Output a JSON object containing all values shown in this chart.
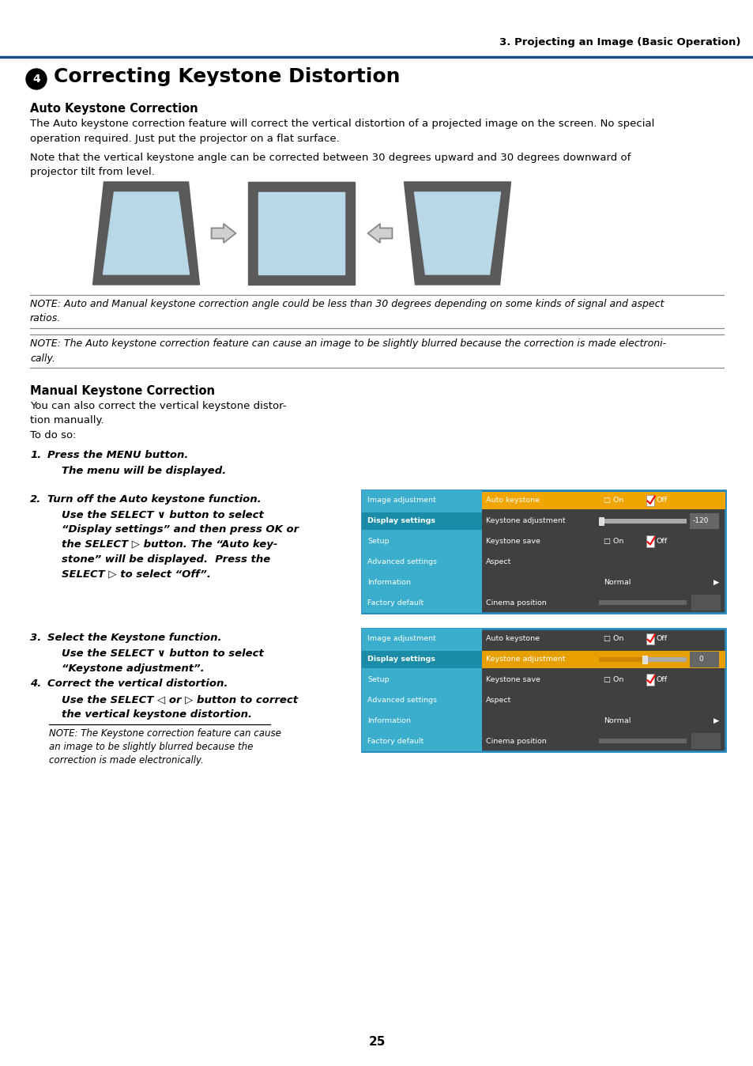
{
  "page_header": "3. Projecting an Image (Basic Operation)",
  "section1_title": "Auto Keystone Correction",
  "para1": "The Auto keystone correction feature will correct the vertical distortion of a projected image on the screen. No special\noperation required. Just put the projector on a flat surface.",
  "para2": "Note that the vertical keystone angle can be corrected between 30 degrees upward and 30 degrees downward of\nprojector tilt from level.",
  "note1": "NOTE: Auto and Manual keystone correction angle could be less than 30 degrees depending on some kinds of signal and aspect\nratios.",
  "note2": "NOTE: The Auto keystone correction feature can cause an image to be slightly blurred because the correction is made electroni-\ncally.",
  "section2_title": "Manual Keystone Correction",
  "intro": "You can also correct the vertical keystone distor-\ntion manually.\nTo do so:",
  "page_number": "25",
  "header_line_color": "#1c4f8a",
  "screen_blue": "#b8d8e8",
  "screen_border": "#5a5a5a",
  "menu_sidebar": "#3aaecc",
  "menu_dark": "#404040",
  "menu_orange": "#f0a500",
  "menu_orange2": "#e8a000",
  "menu_blue_border": "#2288bb",
  "menu_selected_sidebar": "#1a8ca8",
  "menu_slider_gray": "#888888",
  "menu_value_box": "#666666"
}
